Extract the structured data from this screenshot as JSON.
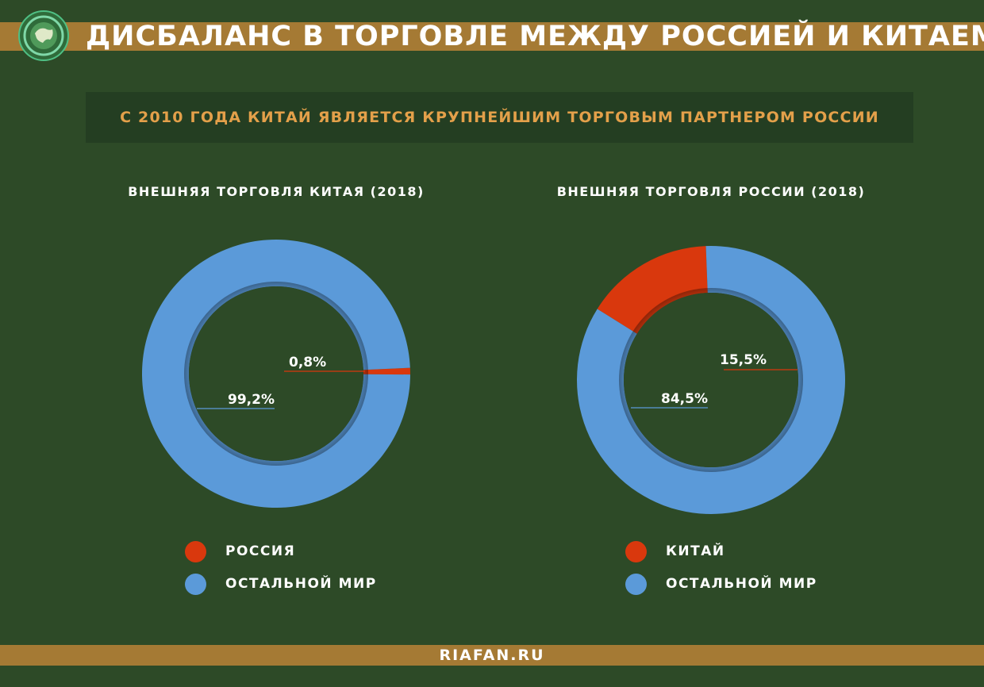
{
  "header": {
    "title": "ДИСБАЛАНС В ТОРГОВЛЕ МЕЖДУ РОССИЕЙ И КИТАЕМ",
    "logo_icon": "globe-logo-icon"
  },
  "subtitle": "С 2010 ГОДА КИТАЙ ЯВЛЯЕТСЯ КРУПНЕЙШИМ ТОРГОВЫМ ПАРТНЕРОМ РОССИИ",
  "colors": {
    "background": "#2d4a27",
    "band": "#a57a34",
    "accent_text": "#e3a04a",
    "red": "#d9380d",
    "blue": "#5b9ad9"
  },
  "chart_data": [
    {
      "type": "pie",
      "title": "ВНЕШНЯЯ ТОРГОВЛЯ КИТАЯ (2018)",
      "categories": [
        "РОССИЯ",
        "ОСТАЛЬНОЙ МИР"
      ],
      "values": [
        0.8,
        99.2
      ],
      "labels": [
        "0,8%",
        "99,2%"
      ],
      "colors": [
        "#d9380d",
        "#5b9ad9"
      ],
      "legend": "bottom"
    },
    {
      "type": "pie",
      "title": "ВНЕШНЯЯ ТОРГОВЛЯ РОССИИ (2018)",
      "categories": [
        "КИТАЙ",
        "ОСТАЛЬНОЙ МИР"
      ],
      "values": [
        15.5,
        84.5
      ],
      "labels": [
        "15,5%",
        "84,5%"
      ],
      "colors": [
        "#d9380d",
        "#5b9ad9"
      ],
      "legend": "bottom"
    }
  ],
  "footer": "RIAFAN.RU"
}
